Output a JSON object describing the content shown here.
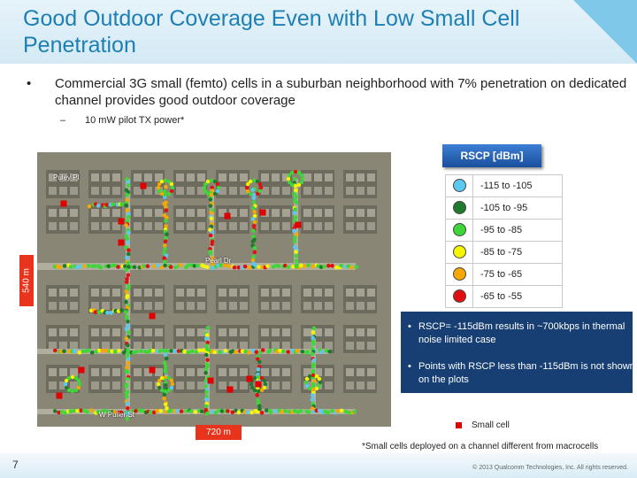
{
  "slide": {
    "title": "Good Outdoor Coverage Even with Low Small Cell Penetration",
    "bullet": "Commercial 3G small (femto) cells in a suburban neighborhood with 7% penetration on dedicated channel provides good outdoor coverage",
    "sub_bullet": "10 mW pilot TX power*",
    "bullet_mark": "•",
    "sub_mark": "–",
    "page_number": "7",
    "copyright": "© 2013 Qualcomm Technologies, Inc. All rights reserved."
  },
  "map": {
    "height_label": "540 m",
    "width_label": "720 m",
    "street_labels": [
      "Puley Pl",
      "Pearl Dr",
      "W Puller St"
    ]
  },
  "legend": {
    "title": "RSCP [dBm]",
    "items": [
      {
        "range": "-115 to -105",
        "color": "#5bc8f0"
      },
      {
        "range": "-105 to -95",
        "color": "#1f7a2e"
      },
      {
        "range": "-95 to -85",
        "color": "#3fd63a"
      },
      {
        "range": "-85 to -75",
        "color": "#f5f500"
      },
      {
        "range": "-75 to -65",
        "color": "#f5a800"
      },
      {
        "range": "-65 to -55",
        "color": "#e01010"
      }
    ]
  },
  "notes": {
    "bullet_mark": "•",
    "items": [
      "RSCP= -115dBm results in ~700kbps in thermal noise limited case",
      "Points with RSCP  less than -115dBm is not shown on the plots"
    ]
  },
  "small_cell_legend": {
    "label": "Small cell",
    "color": "#e00000"
  },
  "footnote": "*Small cells deployed on a channel different from macrocells"
}
